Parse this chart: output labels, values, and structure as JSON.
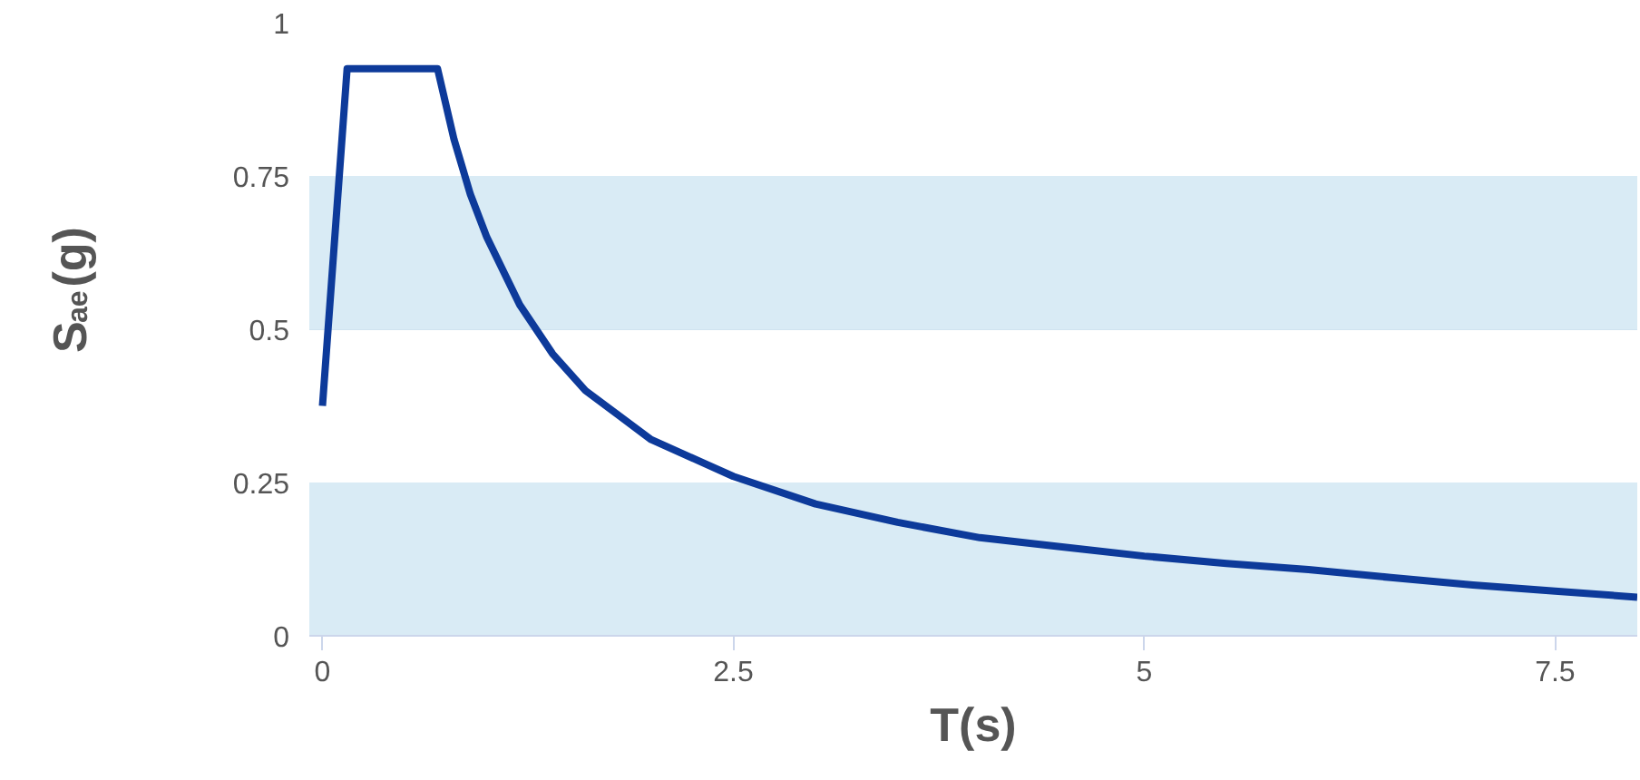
{
  "chart_data": {
    "type": "line",
    "xlabel": "T(s)",
    "ylabel": "S$_{ae}$(g)",
    "x": [
      0,
      0.15,
      0.7,
      0.8,
      0.9,
      1.0,
      1.2,
      1.4,
      1.6,
      1.8,
      2.0,
      2.5,
      3.0,
      3.5,
      4.0,
      4.5,
      5.0,
      5.5,
      6.0,
      6.5,
      7.0,
      7.5,
      8.0
    ],
    "series": [
      {
        "color": "#0d3a9a",
        "values": [
          0.375,
          0.925,
          0.925,
          0.81,
          0.72,
          0.65,
          0.54,
          0.46,
          0.4,
          0.36,
          0.32,
          0.26,
          0.215,
          0.185,
          0.16,
          0.145,
          0.13,
          0.118,
          0.108,
          0.095,
          0.083,
          0.073,
          0.063
        ]
      }
    ],
    "xlim": [
      -0.08,
      8.0
    ],
    "ylim": [
      0,
      1
    ],
    "xticks": [
      0,
      2.5,
      5,
      7.5
    ],
    "yticks": [
      0,
      0.25,
      0.5,
      0.75,
      1
    ],
    "bands": [
      {
        "axis": "y",
        "from": 0,
        "to": 0.25,
        "color": "#d9ebf5"
      },
      {
        "axis": "y",
        "from": 0.5,
        "to": 0.75,
        "color": "#d9ebf5"
      }
    ],
    "grid": "y",
    "marker": "none",
    "line_style": "solid"
  }
}
